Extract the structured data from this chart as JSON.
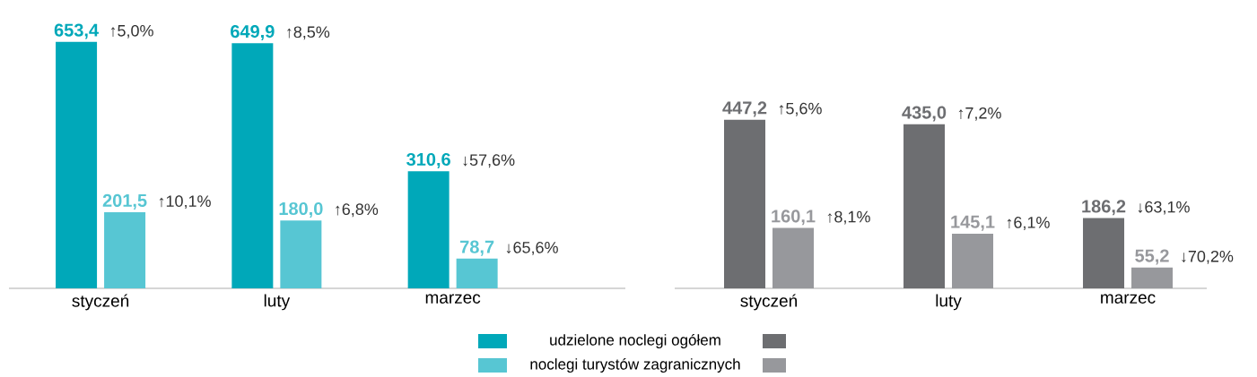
{
  "chart_data": [
    {
      "type": "bar",
      "categories": [
        "styczeń",
        "luty",
        "marzec"
      ],
      "series": [
        {
          "name": "udzielone noclegi ogółem",
          "color": "#00a8b9",
          "values": [
            653.4,
            649.9,
            310.6
          ],
          "value_labels": [
            "653,4",
            "649,9",
            "310,6"
          ]
        },
        {
          "name": "noclegi turystów zagranicznych",
          "color": "#57c6d3",
          "values": [
            201.5,
            180.0,
            78.7
          ],
          "value_labels": [
            "201,5",
            "180,0",
            "78,7"
          ]
        }
      ],
      "annotations": [
        "↑5,0%",
        "↑10,1%",
        "↑8,5%",
        "↑6,8%",
        "↓57,6%",
        "↓65,6%"
      ],
      "legend": "bottom"
    },
    {
      "type": "bar",
      "categories": [
        "styczeń",
        "luty",
        "marzec"
      ],
      "series": [
        {
          "color": "#6d6e71",
          "values": [
            447.2,
            435.0,
            186.2
          ],
          "value_labels": [
            "447,2",
            "435,0",
            "186,2"
          ]
        },
        {
          "color": "#97989c",
          "values": [
            160.1,
            145.1,
            55.2
          ],
          "value_labels": [
            "160,1",
            "145,1",
            "55,2"
          ]
        }
      ],
      "annotations": [
        "↑5,6%",
        "↑8,1%",
        "↑7,2%",
        "↑6,1%",
        "↓63,1%",
        "↓70,2%"
      ]
    }
  ]
}
